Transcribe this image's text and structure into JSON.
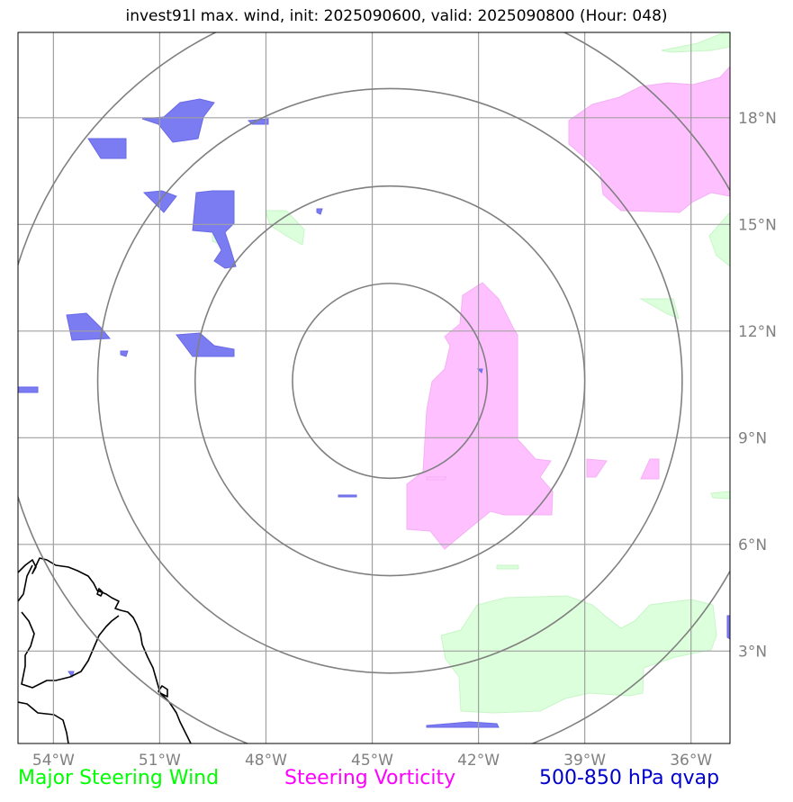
{
  "title": "invest91l max. wind, init: 2025090600, valid: 2025090800 (Hour: 048)",
  "map": {
    "lon_range": [
      -55,
      -34.9
    ],
    "lat_range": [
      0.4,
      20.4
    ],
    "lon_ticks": [
      {
        "lon": -54,
        "label": "54°W"
      },
      {
        "lon": -51,
        "label": "51°W"
      },
      {
        "lon": -48,
        "label": "48°W"
      },
      {
        "lon": -45,
        "label": "45°W"
      },
      {
        "lon": -42,
        "label": "42°W"
      },
      {
        "lon": -39,
        "label": "39°W"
      },
      {
        "lon": -36,
        "label": "36°W"
      }
    ],
    "lat_ticks": [
      {
        "lat": 3,
        "label": "3°N"
      },
      {
        "lat": 6,
        "label": "6°N"
      },
      {
        "lat": 9,
        "label": "9°N"
      },
      {
        "lat": 12,
        "label": "12°N"
      },
      {
        "lat": 15,
        "label": "15°N"
      },
      {
        "lat": 18,
        "label": "18°N"
      }
    ],
    "range_rings_center": {
      "lon": -44.5,
      "lat": 10.6
    },
    "range_rings_deg": [
      2.75,
      5.5,
      8.25,
      11.0
    ],
    "gridlines": true
  },
  "legend": {
    "wind": {
      "label": "Major Steering Wind",
      "color": "#00ff00"
    },
    "vorticity": {
      "label": "Steering Vorticity",
      "color": "#ff00ff"
    },
    "qvap": {
      "label": "500-850 hPa qvap",
      "color": "#0000cd"
    }
  },
  "colors": {
    "wind_fill": "#dcffdc",
    "vorticity_fill": "#ffc0ff",
    "qvap_fill": "#7b7bf2",
    "grid": "#a0a0a0",
    "rings": "#808080",
    "coast": "#000000"
  }
}
